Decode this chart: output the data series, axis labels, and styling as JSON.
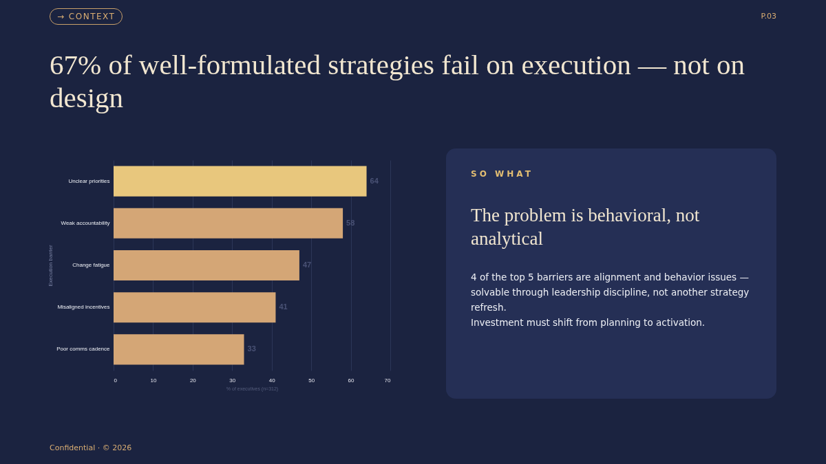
{
  "chart_data": {
    "type": "bar",
    "orientation": "horizontal",
    "title": "67% of well-formulated strategies fail on execution — not on design",
    "xlabel": "% of executives (n=312)",
    "ylabel": "Execution barrier",
    "categories": [
      "Unclear priorities",
      "Weak accountability",
      "Change fatigue",
      "Misaligned incentives",
      "Poor comms cadence"
    ],
    "values": [
      64,
      58,
      47,
      41,
      33
    ],
    "colors": [
      "#e8c77d",
      "#d4a676",
      "#d4a676",
      "#d4a676",
      "#d4a676"
    ],
    "xlim": [
      0,
      70
    ],
    "xticks": [
      0,
      10,
      20,
      30,
      40,
      50,
      60,
      70
    ],
    "grid": "x",
    "data_labels": true,
    "annotations": [
      "→ CONTEXT",
      "P.03",
      "SO WHAT",
      "The problem is behavioral, not analytical",
      "4 of the top 5 barriers are alignment and behavior issues — solvable through leadership discipline, not another strategy refresh.",
      "Investment must shift from planning to activation.",
      "Confidential · © 2026"
    ]
  }
}
